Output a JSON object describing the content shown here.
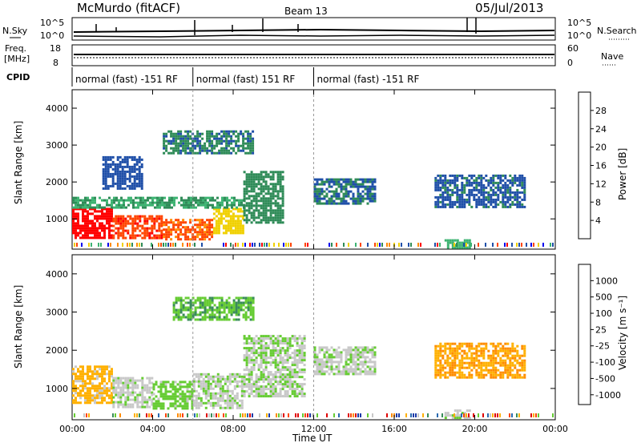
{
  "header": {
    "station": "McMurdo (fitACF)",
    "beam": "Beam 13",
    "date": "05/Jul/2013"
  },
  "noise_panel": {
    "left_label": "N.Sky",
    "right_label": "N.Search",
    "left_ticks": [
      "10^5",
      "10^0"
    ],
    "right_ticks": [
      "10^5",
      "10^0"
    ]
  },
  "freq_panel": {
    "left_label_1": "Freq.",
    "left_label_2": "[MHz]",
    "right_label": "Nave",
    "left_ticks": [
      "18",
      "8"
    ],
    "right_ticks": [
      "60",
      "0"
    ]
  },
  "cpid": {
    "label": "CPID",
    "segments": [
      {
        "text": "normal (fast) -151 RF",
        "start_hour": 0,
        "end_hour": 6
      },
      {
        "text": "normal (fast) 151 RF",
        "start_hour": 6,
        "end_hour": 12
      },
      {
        "text": "normal (fast) -151 RF",
        "start_hour": 12,
        "end_hour": 24
      }
    ]
  },
  "x_axis": {
    "label": "Time UT",
    "ticks": [
      "00:00",
      "04:00",
      "08:00",
      "12:00",
      "16:00",
      "20:00",
      "00:00"
    ],
    "range_hours": [
      0,
      24
    ]
  },
  "colors": {
    "power": [
      "#0000f0",
      "#1f4fa8",
      "#2e8b57",
      "#3cb371",
      "#f0d000",
      "#ff8c00",
      "#ff4500",
      "#ff0000"
    ],
    "velocity": [
      "#e00000",
      "#ff4500",
      "#ff8c00",
      "#ffb000",
      "#c8c8c8",
      "#66cc33",
      "#3a8c5a",
      "#2a6ab0",
      "#1a3aa8"
    ]
  },
  "chart_data": [
    {
      "type": "heatmap",
      "title": "",
      "xlabel": "",
      "ylabel": "Slant Range [km]",
      "xlim": [
        0,
        24
      ],
      "ylim": [
        180,
        4500
      ],
      "y_ticks": [
        "4000",
        "3000",
        "2000",
        "1000"
      ],
      "y_tick_values": [
        4000,
        3000,
        2000,
        1000
      ],
      "colorbar": {
        "label": "Power [dB]",
        "ticks": [
          "28",
          "24",
          "20",
          "16",
          "12",
          "8",
          "4"
        ],
        "range": [
          0,
          32
        ]
      },
      "regions": [
        {
          "t0": 0.0,
          "t1": 2.0,
          "r0": 500,
          "r1": 1300,
          "value": 30
        },
        {
          "t0": 2.0,
          "t1": 4.5,
          "r0": 500,
          "r1": 1100,
          "value": 27
        },
        {
          "t0": 4.5,
          "t1": 7.0,
          "r0": 450,
          "r1": 1000,
          "value": 25
        },
        {
          "t0": 7.0,
          "t1": 8.5,
          "r0": 600,
          "r1": 1300,
          "value": 18
        },
        {
          "t0": 0.0,
          "t1": 8.5,
          "r0": 1300,
          "r1": 1600,
          "value": 12
        },
        {
          "t0": 8.5,
          "t1": 10.5,
          "r0": 900,
          "r1": 2300,
          "value": 10
        },
        {
          "t0": 4.5,
          "t1": 9.0,
          "r0": 2800,
          "r1": 3400,
          "value": 9
        },
        {
          "t0": 1.5,
          "t1": 3.5,
          "r0": 1800,
          "r1": 2700,
          "value": 6
        },
        {
          "t0": 12.0,
          "t1": 15.0,
          "r0": 1400,
          "r1": 2100,
          "value": 8
        },
        {
          "t0": 18.0,
          "t1": 22.5,
          "r0": 1300,
          "r1": 2200,
          "value": 7
        },
        {
          "t0": 18.5,
          "t1": 19.8,
          "r0": 250,
          "r1": 450,
          "value": 14
        }
      ]
    },
    {
      "type": "heatmap",
      "title": "",
      "xlabel": "Time UT",
      "ylabel": "Slant Range [km]",
      "xlim": [
        0,
        24
      ],
      "ylim": [
        180,
        4500
      ],
      "y_ticks": [
        "4000",
        "3000",
        "2000",
        "1000"
      ],
      "y_tick_values": [
        4000,
        3000,
        2000,
        1000
      ],
      "colorbar": {
        "label": "Velocity [m s⁻¹]",
        "ticks": [
          "1000",
          "500",
          "100",
          "25",
          "-25",
          "-100",
          "-500",
          "-1000"
        ],
        "range": [
          -1000,
          1000
        ]
      },
      "regions": [
        {
          "t0": 0.0,
          "t1": 2.0,
          "r0": 600,
          "r1": 1600,
          "value": -200
        },
        {
          "t0": 2.0,
          "t1": 4.0,
          "r0": 500,
          "r1": 1300,
          "value": 50
        },
        {
          "t0": 4.0,
          "t1": 6.0,
          "r0": 500,
          "r1": 1200,
          "value": 200
        },
        {
          "t0": 6.0,
          "t1": 8.5,
          "r0": 500,
          "r1": 1400,
          "value": 60
        },
        {
          "t0": 8.5,
          "t1": 11.5,
          "r0": 800,
          "r1": 2400,
          "value": 80
        },
        {
          "t0": 5.0,
          "t1": 9.0,
          "r0": 2800,
          "r1": 3400,
          "value": 300
        },
        {
          "t0": 12.0,
          "t1": 15.0,
          "r0": 1400,
          "r1": 2100,
          "value": 60
        },
        {
          "t0": 18.0,
          "t1": 22.5,
          "r0": 1300,
          "r1": 2200,
          "value": -300
        },
        {
          "t0": 18.5,
          "t1": 19.8,
          "r0": 250,
          "r1": 450,
          "value": 40
        }
      ]
    }
  ]
}
